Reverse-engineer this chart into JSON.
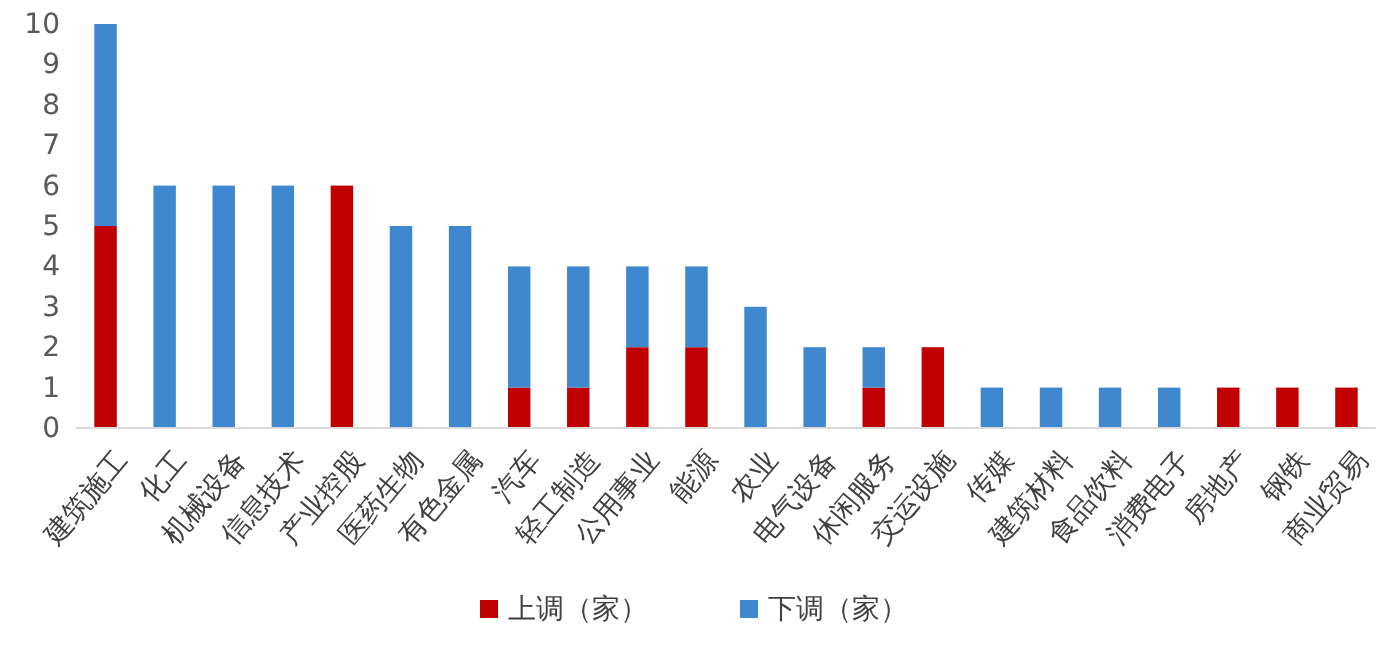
{
  "chart_data": {
    "type": "bar",
    "stacked": true,
    "categories": [
      "建筑施工",
      "化工",
      "机械设备",
      "信息技术",
      "产业控股",
      "医药生物",
      "有色金属",
      "汽车",
      "轻工制造",
      "公用事业",
      "能源",
      "农业",
      "电气设备",
      "休闲服务",
      "交运设施",
      "传媒",
      "建筑材料",
      "食品饮料",
      "消费电子",
      "房地产",
      "钢铁",
      "商业贸易"
    ],
    "series": [
      {
        "name": "上调（家）",
        "color": "#c00000",
        "values": [
          5,
          0,
          0,
          0,
          6,
          0,
          0,
          1,
          1,
          2,
          2,
          0,
          0,
          1,
          2,
          0,
          0,
          0,
          0,
          1,
          1,
          1
        ]
      },
      {
        "name": "下调（家）",
        "color": "#3f87cf",
        "values": [
          5,
          6,
          6,
          6,
          0,
          5,
          5,
          3,
          3,
          2,
          2,
          3,
          2,
          1,
          0,
          1,
          1,
          1,
          1,
          0,
          0,
          0
        ]
      }
    ],
    "ylim": [
      0,
      10
    ],
    "yticks": [
      0,
      1,
      2,
      3,
      4,
      5,
      6,
      7,
      8,
      9,
      10
    ],
    "grid": false,
    "legend": "bottom"
  }
}
